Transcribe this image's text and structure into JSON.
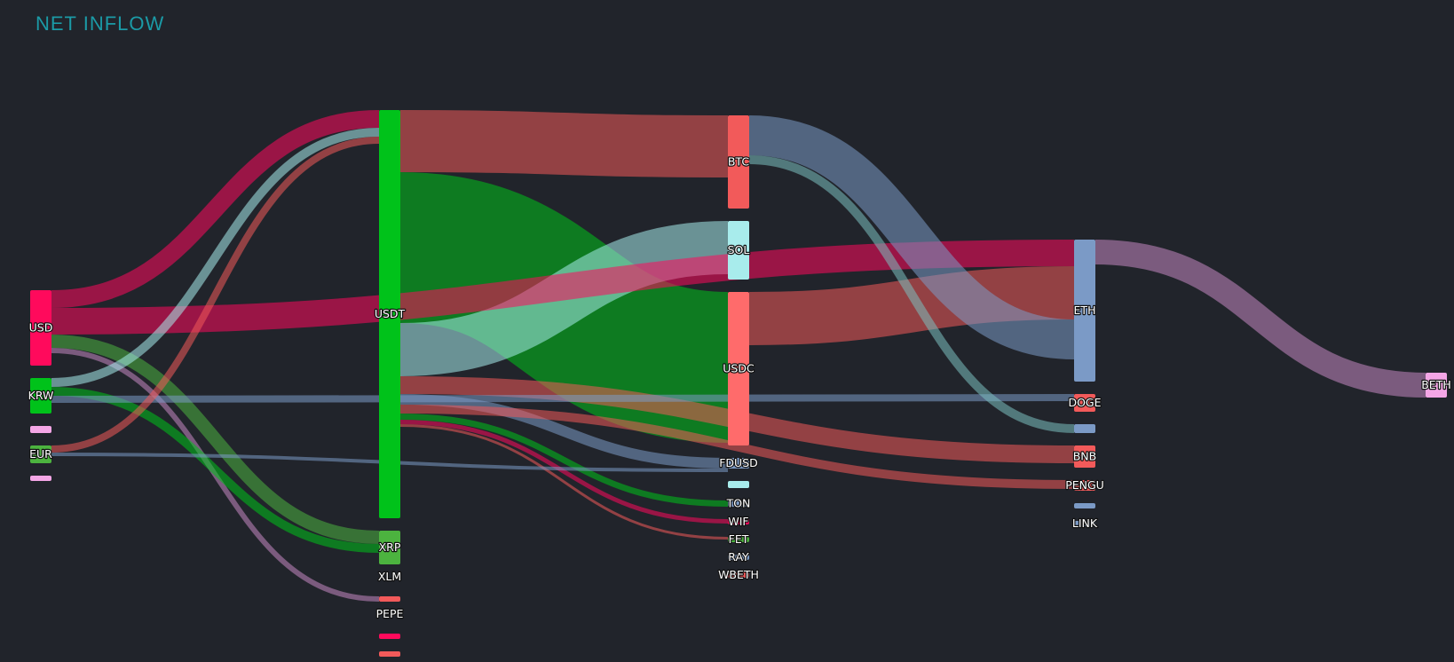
{
  "title": "NET INFLOW",
  "chart_data": {
    "type": "sankey",
    "title": "NET INFLOW",
    "nodes": [
      {
        "name": "USD",
        "column": 0,
        "label": "USD",
        "color": "#ff0a5c",
        "value": 85
      },
      {
        "name": "KRW",
        "column": 0,
        "label": "KRW",
        "color": "#00c21a",
        "value": 40
      },
      {
        "name": "EUR_small",
        "column": 0,
        "label": "",
        "color": "#f4a6e6",
        "value": 8
      },
      {
        "name": "EUR",
        "column": 0,
        "label": "EUR",
        "color": "#4cb33f",
        "value": 20
      },
      {
        "name": "MISC_0",
        "column": 0,
        "label": "",
        "color": "#f4a6e6",
        "value": 3
      },
      {
        "name": "USDT",
        "column": 1,
        "label": "USDT",
        "color": "#00c21a",
        "value": 460
      },
      {
        "name": "XRP",
        "column": 1,
        "label": "XRP",
        "color": "#4cb33f",
        "value": 38
      },
      {
        "name": "XLM",
        "column": 1,
        "label": "XLM",
        "color": "#f4a6e6",
        "value": 0
      },
      {
        "name": "XLM_bar",
        "column": 1,
        "label": "",
        "color": "#f25a5a",
        "value": 6
      },
      {
        "name": "PEPE",
        "column": 1,
        "label": "PEPE",
        "color": "#f4a6e6",
        "value": 0
      },
      {
        "name": "PEPE_bar",
        "column": 1,
        "label": "",
        "color": "#ff0a5c",
        "value": 5
      },
      {
        "name": "PEPE_bar2",
        "column": 1,
        "label": "",
        "color": "#f25a5a",
        "value": 4
      },
      {
        "name": "BTC",
        "column": 2,
        "label": "BTC",
        "color": "#f25a5a",
        "value": 105
      },
      {
        "name": "SOL",
        "column": 2,
        "label": "SOL",
        "color": "#a8ecec",
        "value": 66
      },
      {
        "name": "USDC",
        "column": 2,
        "label": "USDC",
        "color": "#ff6b6b",
        "value": 173
      },
      {
        "name": "FDUSD",
        "column": 2,
        "label": "FDUSD",
        "color": "#7b9ac6",
        "value": 12
      },
      {
        "name": "FDUSD_bar",
        "column": 2,
        "label": "",
        "color": "#a8ecec",
        "value": 8
      },
      {
        "name": "TON",
        "column": 2,
        "label": "TON",
        "color": "#7b9ac6",
        "value": 7
      },
      {
        "name": "WIF",
        "column": 2,
        "label": "WIF",
        "color": "#ff0a5c",
        "value": 5
      },
      {
        "name": "FET",
        "column": 2,
        "label": "FET",
        "color": "#4cb33f",
        "value": 3
      },
      {
        "name": "RAY",
        "column": 2,
        "label": "RAY",
        "color": "#7b9ac6",
        "value": 3
      },
      {
        "name": "WBETH",
        "column": 2,
        "label": "WBETH",
        "color": "#f25a5a",
        "value": 3
      },
      {
        "name": "ETH",
        "column": 3,
        "label": "ETH",
        "color": "#7b9ac6",
        "value": 160
      },
      {
        "name": "DOGE",
        "column": 3,
        "label": "DOGE",
        "color": "#f25a5a",
        "value": 20
      },
      {
        "name": "DOGE_bar",
        "column": 3,
        "label": "",
        "color": "#7b9ac6",
        "value": 10
      },
      {
        "name": "BNB",
        "column": 3,
        "label": "BNB",
        "color": "#f25a5a",
        "value": 25
      },
      {
        "name": "PENGU",
        "column": 3,
        "label": "PENGU",
        "color": "#f25a5a",
        "value": 12
      },
      {
        "name": "PENGU_bar",
        "column": 3,
        "label": "",
        "color": "#7b9ac6",
        "value": 3
      },
      {
        "name": "LINK",
        "column": 3,
        "label": "LINK",
        "color": "#7b9ac6",
        "value": 2
      },
      {
        "name": "BETH",
        "column": 4,
        "label": "BETH",
        "color": "#f4a6e6",
        "value": 28
      }
    ],
    "links": [
      {
        "source": "USDT",
        "target": "BTC",
        "value": 70,
        "color": "#f25a5a"
      },
      {
        "source": "USDT",
        "target": "USDC",
        "value": 170,
        "color": "#00c21a"
      },
      {
        "source": "USDT",
        "target": "SOL",
        "value": 60,
        "color": "#a8ecec"
      },
      {
        "source": "USDT",
        "target": "BNB",
        "value": 20,
        "color": "#f25a5a"
      },
      {
        "source": "USDT",
        "target": "FDUSD",
        "value": 12,
        "color": "#7b9ac6"
      },
      {
        "source": "USDT",
        "target": "PENGU",
        "value": 10,
        "color": "#f25a5a"
      },
      {
        "source": "USDT",
        "target": "TON",
        "value": 7,
        "color": "#00c21a"
      },
      {
        "source": "USDT",
        "target": "WIF",
        "value": 5,
        "color": "#ff0a5c"
      },
      {
        "source": "USDT",
        "target": "FET",
        "value": 3,
        "color": "#f25a5a"
      },
      {
        "source": "USD",
        "target": "USDT",
        "value": 20,
        "color": "#ff0a5c"
      },
      {
        "source": "USD",
        "target": "ETH",
        "value": 30,
        "color": "#ff0a5c"
      },
      {
        "source": "USD",
        "target": "XRP",
        "value": 15,
        "color": "#4cb33f"
      },
      {
        "source": "USD",
        "target": "XLM_bar",
        "value": 6,
        "color": "#c788c3"
      },
      {
        "source": "KRW",
        "target": "USDT",
        "value": 10,
        "color": "#a8ecec"
      },
      {
        "source": "KRW",
        "target": "XRP",
        "value": 10,
        "color": "#00c21a"
      },
      {
        "source": "KRW",
        "target": "DOGE",
        "value": 8,
        "color": "#7b9ac6"
      },
      {
        "source": "EUR",
        "target": "USDT",
        "value": 8,
        "color": "#f25a5a"
      },
      {
        "source": "EUR",
        "target": "FDUSD",
        "value": 4,
        "color": "#7b9ac6"
      },
      {
        "source": "USDC",
        "target": "ETH",
        "value": 60,
        "color": "#f25a5a"
      },
      {
        "source": "BTC",
        "target": "ETH",
        "value": 45,
        "color": "#7b9ac6"
      },
      {
        "source": "BTC",
        "target": "DOGE_bar",
        "value": 10,
        "color": "#7bbfbf"
      },
      {
        "source": "ETH",
        "target": "BETH",
        "value": 28,
        "color": "#c788c3"
      }
    ]
  }
}
